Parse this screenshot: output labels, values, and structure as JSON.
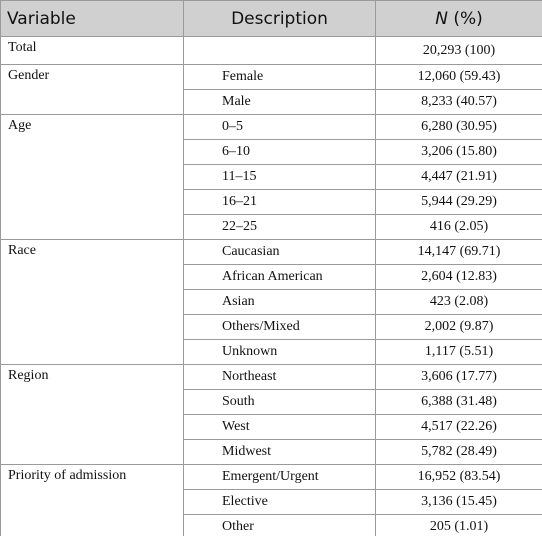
{
  "header": {
    "columns": [
      "Variable",
      "Description",
      {
        "symbol": "N",
        "suffix": " (%)"
      }
    ]
  },
  "total": {
    "variable": "Total",
    "n": "20,293 (100)"
  },
  "groups": [
    {
      "variable": "Gender",
      "rows": [
        {
          "description": "Female",
          "n": "12,060 (59.43)"
        },
        {
          "description": "Male",
          "n": "8,233 (40.57)"
        }
      ]
    },
    {
      "variable": "Age",
      "rows": [
        {
          "description": "0–5",
          "n": "6,280 (30.95)"
        },
        {
          "description": "6–10",
          "n": "3,206 (15.80)"
        },
        {
          "description": "11–15",
          "n": "4,447 (21.91)"
        },
        {
          "description": "16–21",
          "n": "5,944 (29.29)"
        },
        {
          "description": "22–25",
          "n": "416 (2.05)"
        }
      ]
    },
    {
      "variable": "Race",
      "rows": [
        {
          "description": "Caucasian",
          "n": "14,147 (69.71)"
        },
        {
          "description": "African American",
          "n": "2,604 (12.83)"
        },
        {
          "description": "Asian",
          "n": "423 (2.08)"
        },
        {
          "description": "Others/Mixed",
          "n": "2,002 (9.87)"
        },
        {
          "description": "Unknown",
          "n": "1,117 (5.51)"
        }
      ]
    },
    {
      "variable": "Region",
      "rows": [
        {
          "description": "Northeast",
          "n": "3,606 (17.77)"
        },
        {
          "description": "South",
          "n": "6,388 (31.48)"
        },
        {
          "description": "West",
          "n": "4,517 (22.26)"
        },
        {
          "description": "Midwest",
          "n": "5,782 (28.49)"
        }
      ]
    },
    {
      "variable": "Priority of admission",
      "rows": [
        {
          "description": "Emergent/Urgent",
          "n": "16,952 (83.54)"
        },
        {
          "description": "Elective",
          "n": "3,136 (15.45)"
        },
        {
          "description": "Other",
          "n": "205 (1.01)"
        }
      ]
    }
  ]
}
